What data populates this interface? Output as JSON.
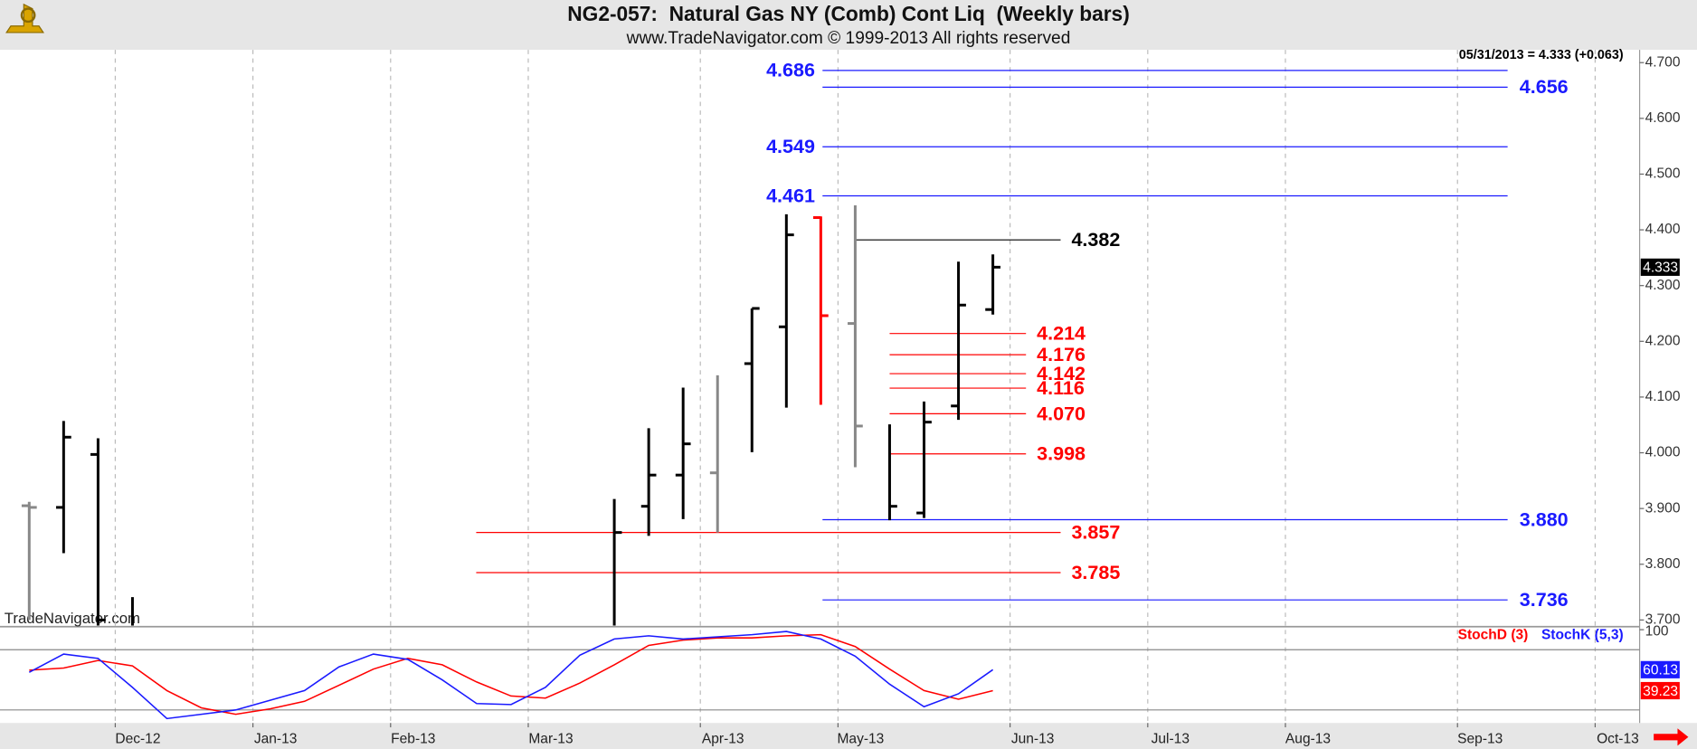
{
  "chart_data": [
    {
      "type": "ohlc",
      "title": "NG2-057:  Natural Gas NY (Comb) Cont Liq  (Weekly bars)",
      "subtitle": "www.TradeNavigator.com © 1999-2013 All rights reserved",
      "annotation": "05/31/2013 = 4.333 (+0.063)",
      "watermark": "TradeNavigator.com",
      "categories": [
        null,
        null,
        null,
        "Dec-12",
        null,
        null,
        null,
        "Jan-13",
        null,
        null,
        null,
        "Feb-13",
        null,
        null,
        null,
        "Mar-13",
        null,
        null,
        null,
        null,
        "Apr-13",
        null,
        null,
        null,
        "May-13",
        null,
        null,
        null,
        null,
        "Jun-13",
        null,
        null,
        null,
        "Jul-13",
        null,
        null,
        null,
        "Aug-13",
        null,
        null,
        null,
        null,
        "Sep-13",
        null,
        null,
        null,
        "Oct-13"
      ],
      "open": [
        3.905,
        3.902,
        3.997,
        null,
        null,
        null,
        null,
        null,
        null,
        null,
        null,
        null,
        null,
        null,
        null,
        null,
        null,
        null,
        3.904,
        3.96,
        3.964,
        4.16,
        4.226,
        4.422,
        4.232,
        null,
        3.892,
        4.084,
        4.257,
        null,
        null,
        null,
        null,
        null,
        null,
        null,
        null,
        null,
        null,
        null,
        null,
        null,
        null,
        null,
        null,
        null,
        null
      ],
      "high": [
        3.912,
        4.057,
        4.026,
        3.741,
        null,
        null,
        null,
        null,
        null,
        null,
        null,
        null,
        null,
        null,
        null,
        null,
        null,
        3.917,
        4.044,
        4.117,
        4.139,
        4.259,
        4.428,
        4.424,
        4.444,
        4.051,
        4.092,
        4.343,
        4.356,
        null,
        null,
        null,
        null,
        null,
        null,
        null,
        null,
        null,
        null,
        null,
        null,
        null,
        null,
        null,
        null,
        null,
        null
      ],
      "low": [
        3.7,
        3.82,
        3.69,
        3.69,
        null,
        null,
        null,
        null,
        null,
        null,
        null,
        null,
        null,
        null,
        null,
        null,
        null,
        3.69,
        3.851,
        3.881,
        3.857,
        4.001,
        4.081,
        4.086,
        3.974,
        3.879,
        3.883,
        4.059,
        4.248,
        null,
        null,
        null,
        null,
        null,
        null,
        null,
        null,
        null,
        null,
        null,
        null,
        null,
        null,
        null,
        null,
        null,
        null
      ],
      "close": [
        3.902,
        4.028,
        3.7,
        null,
        null,
        null,
        null,
        null,
        null,
        null,
        null,
        null,
        null,
        null,
        null,
        null,
        null,
        3.857,
        3.96,
        4.016,
        null,
        4.259,
        4.391,
        4.246,
        4.048,
        3.904,
        4.055,
        4.265,
        4.333,
        null,
        null,
        null,
        null,
        null,
        null,
        null,
        null,
        null,
        null,
        null,
        null,
        null,
        null,
        null,
        null,
        null,
        null
      ],
      "colors": [
        "#888888",
        "#000000",
        "#000000",
        "#000000",
        null,
        null,
        null,
        null,
        null,
        null,
        null,
        null,
        null,
        null,
        null,
        null,
        null,
        "#000000",
        "#000000",
        "#000000",
        "#888888",
        "#000000",
        "#000000",
        "#ff0000",
        "#888888",
        "#000000",
        "#000000",
        "#000000",
        "#000000",
        null,
        null,
        null,
        null,
        null,
        null,
        null,
        null,
        null,
        null,
        null,
        null,
        null,
        null,
        null,
        null,
        null,
        null
      ],
      "ylim": [
        3.688,
        4.723
      ],
      "yticks": [
        {
          "value": 3.7,
          "label": "3.700"
        },
        {
          "value": 3.8,
          "label": "3.800"
        },
        {
          "value": 3.9,
          "label": "3.900"
        },
        {
          "value": 4.0,
          "label": "4.000"
        },
        {
          "value": 4.1,
          "label": "4.100"
        },
        {
          "value": 4.2,
          "label": "4.200"
        },
        {
          "value": 4.3,
          "label": "4.300"
        },
        {
          "value": 4.4,
          "label": "4.400"
        },
        {
          "value": 4.5,
          "label": "4.500"
        },
        {
          "value": 4.6,
          "label": "4.600"
        },
        {
          "value": 4.7,
          "label": "4.700"
        }
      ],
      "levels": [
        {
          "color": "#1a1aff",
          "values": [
            4.686,
            4.549,
            4.461
          ],
          "value_labels": [
            "4.686",
            "4.549",
            "4.461"
          ]
        },
        {
          "color": "#1a1aff",
          "values": [
            4.656,
            3.88,
            3.736
          ],
          "value_labels": [
            "4.656",
            "3.880",
            "3.736"
          ]
        },
        {
          "color": "#ff0000",
          "values": [
            4.214,
            4.176,
            4.142,
            4.116,
            4.07,
            3.998
          ],
          "value_labels": [
            "4.214",
            "4.176",
            "4.142",
            "4.116",
            "4.070",
            "3.998"
          ]
        },
        {
          "color": "#ff0000",
          "values": [
            3.857,
            3.785
          ],
          "value_labels": [
            "3.857",
            "3.785"
          ]
        },
        {
          "color": "#000000",
          "values": [
            4.382
          ],
          "value_labels": [
            "4.382"
          ]
        }
      ]
    },
    {
      "type": "line",
      "ylim": [
        7,
        103
      ],
      "yticks": [
        100
      ],
      "hlines": [
        80,
        20
      ],
      "series": [
        {
          "name": "StochD (3)",
          "color": "#ff0000",
          "values": [
            59.6,
            61.8,
            69.3,
            63.9,
            39.3,
            22.1,
            15.7,
            21.1,
            28.6,
            44.6,
            60.7,
            71.4,
            65,
            47.9,
            33.9,
            31.8,
            46.8,
            65,
            84.3,
            89.6,
            91.8,
            91.8,
            93.9,
            95,
            83.2,
            60.7,
            39.3,
            30.7,
            39.23,
            null,
            null,
            null,
            null,
            null,
            null,
            null,
            null,
            null,
            null,
            null,
            null,
            null,
            null,
            null,
            null,
            null,
            null
          ]
        },
        {
          "name": "StochK (5,3)",
          "color": "#1a1aff",
          "values": [
            57.5,
            75.7,
            71.4,
            42.5,
            11.4,
            15.7,
            20,
            29.6,
            39.3,
            62.9,
            75.7,
            70.4,
            50,
            26.4,
            25.4,
            42.5,
            74.6,
            90.7,
            93.9,
            90.7,
            92.9,
            95,
            98.2,
            90.7,
            73.6,
            45.7,
            23.2,
            36.1,
            60.13,
            null,
            null,
            null,
            null,
            null,
            null,
            null,
            null,
            null,
            null,
            null,
            null,
            null,
            null,
            null,
            null,
            null,
            null
          ]
        }
      ]
    }
  ]
}
